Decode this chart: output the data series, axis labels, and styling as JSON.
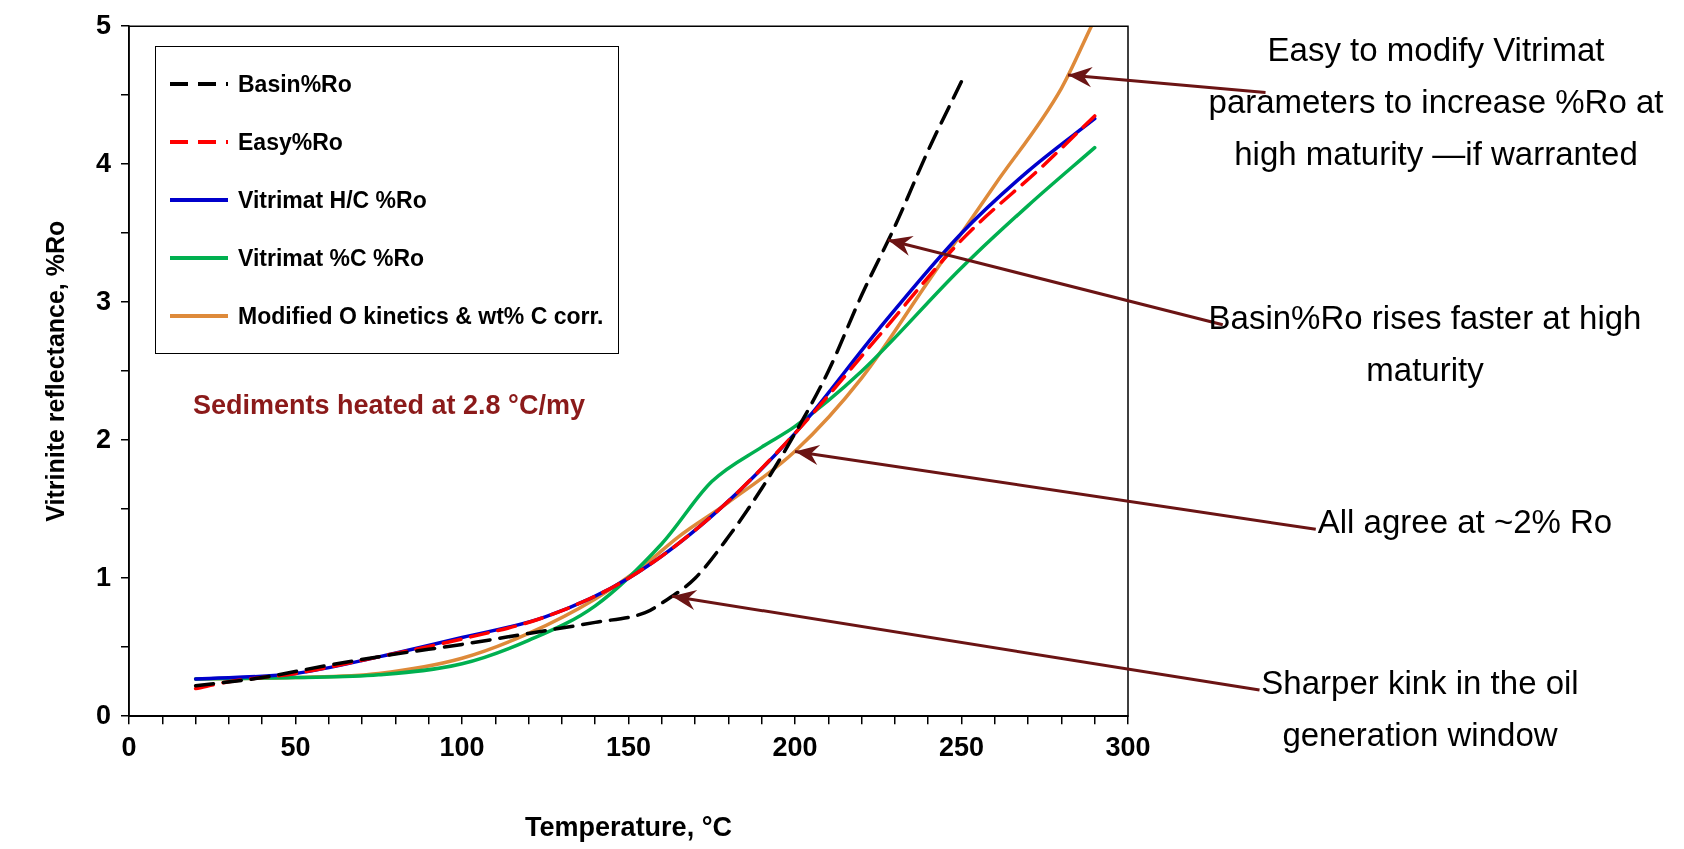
{
  "chart_data": {
    "type": "line",
    "xlabel": "Temperature, °C",
    "ylabel": "Vitrinite reflectance, %Ro",
    "xlim": [
      0,
      300
    ],
    "ylim": [
      0,
      5
    ],
    "xticks": [
      0,
      {
        "value": 10,
        "label": null
      },
      {
        "value": 20,
        "label": null
      },
      {
        "value": 30,
        "label": null
      },
      {
        "value": 40,
        "label": null
      },
      50,
      {
        "value": 60,
        "label": null
      },
      {
        "value": 70,
        "label": null
      },
      {
        "value": 80,
        "label": null
      },
      {
        "value": 90,
        "label": null
      },
      100,
      {
        "value": 110,
        "label": null
      },
      {
        "value": 120,
        "label": null
      },
      {
        "value": 130,
        "label": null
      },
      {
        "value": 140,
        "label": null
      },
      150,
      {
        "value": 160,
        "label": null
      },
      {
        "value": 170,
        "label": null
      },
      {
        "value": 180,
        "label": null
      },
      {
        "value": 190,
        "label": null
      },
      200,
      {
        "value": 210,
        "label": null
      },
      {
        "value": 220,
        "label": null
      },
      {
        "value": 230,
        "label": null
      },
      {
        "value": 240,
        "label": null
      },
      250,
      {
        "value": 260,
        "label": null
      },
      {
        "value": 270,
        "label": null
      },
      {
        "value": 280,
        "label": null
      },
      {
        "value": 290,
        "label": null
      },
      300
    ],
    "yticks": [
      0,
      {
        "value": 0.5,
        "label": null
      },
      1,
      {
        "value": 1.5,
        "label": null
      },
      2,
      {
        "value": 2.5,
        "label": null
      },
      3,
      {
        "value": 3.5,
        "label": null
      },
      4,
      {
        "value": 4.5,
        "label": null
      },
      5
    ],
    "grid": false,
    "legend": "top left",
    "marker": "none",
    "series": [
      {
        "name": "Basin%Ro",
        "color": "#000000",
        "line_style": "dashed",
        "x": [
          20,
          40,
          60,
          80,
          100,
          120,
          140,
          155,
          160,
          170,
          180,
          190,
          200,
          210,
          220,
          230,
          240,
          250
        ],
        "values": [
          0.22,
          0.28,
          0.37,
          0.45,
          0.52,
          0.6,
          0.68,
          0.75,
          0.82,
          1.0,
          1.3,
          1.65,
          2.05,
          2.5,
          3.05,
          3.55,
          4.1,
          4.6
        ]
      },
      {
        "name": "Easy%Ro",
        "color": "#ff0000",
        "line_style": "dashed",
        "x": [
          20,
          30,
          50,
          75,
          100,
          125,
          150,
          175,
          200,
          225,
          250,
          275,
          290
        ],
        "values": [
          0.2,
          0.25,
          0.31,
          0.43,
          0.56,
          0.72,
          1.0,
          1.45,
          2.05,
          2.75,
          3.45,
          4.0,
          4.35
        ]
      },
      {
        "name": "Vitrimat H/C %Ro",
        "color": "#0000cc",
        "line_style": "solid",
        "x": [
          20,
          50,
          75,
          100,
          125,
          150,
          175,
          200,
          225,
          250,
          270,
          290
        ],
        "values": [
          0.27,
          0.31,
          0.43,
          0.57,
          0.72,
          1.0,
          1.45,
          2.05,
          2.8,
          3.5,
          3.95,
          4.33
        ]
      },
      {
        "name": "Vitrimat %C %Ro",
        "color": "#00b050",
        "line_style": "solid",
        "x": [
          20,
          50,
          75,
          100,
          120,
          140,
          160,
          175,
          190,
          200,
          220,
          250,
          270,
          290
        ],
        "values": [
          0.27,
          0.28,
          0.3,
          0.38,
          0.55,
          0.8,
          1.25,
          1.7,
          1.95,
          2.1,
          2.5,
          3.25,
          3.7,
          4.12
        ]
      },
      {
        "name": "Modified O kinetics & wt% C corr.",
        "color": "#de8a3a",
        "line_style": "solid",
        "x": [
          20,
          50,
          75,
          100,
          120,
          140,
          155,
          165,
          180,
          200,
          220,
          240,
          260,
          280,
          289
        ],
        "values": [
          0.27,
          0.28,
          0.31,
          0.42,
          0.6,
          0.85,
          1.1,
          1.3,
          1.55,
          1.92,
          2.45,
          3.15,
          3.85,
          4.55,
          5.0
        ]
      }
    ],
    "annotations": [
      "Sediments heated at 2.8 °C/my",
      {
        "text": "Easy to modify Vitrimat parameters to increase %Ro at high maturity —if warranted",
        "x": 282,
        "y": 4.65
      },
      {
        "text": "Basin%Ro rises faster at high maturity",
        "x": 228,
        "y": 3.45
      },
      {
        "text": "All agree at ~2% Ro",
        "x": 200,
        "y": 1.92
      },
      {
        "text": "Sharper kink in the oil generation window",
        "x": 163,
        "y": 0.87
      }
    ]
  }
}
